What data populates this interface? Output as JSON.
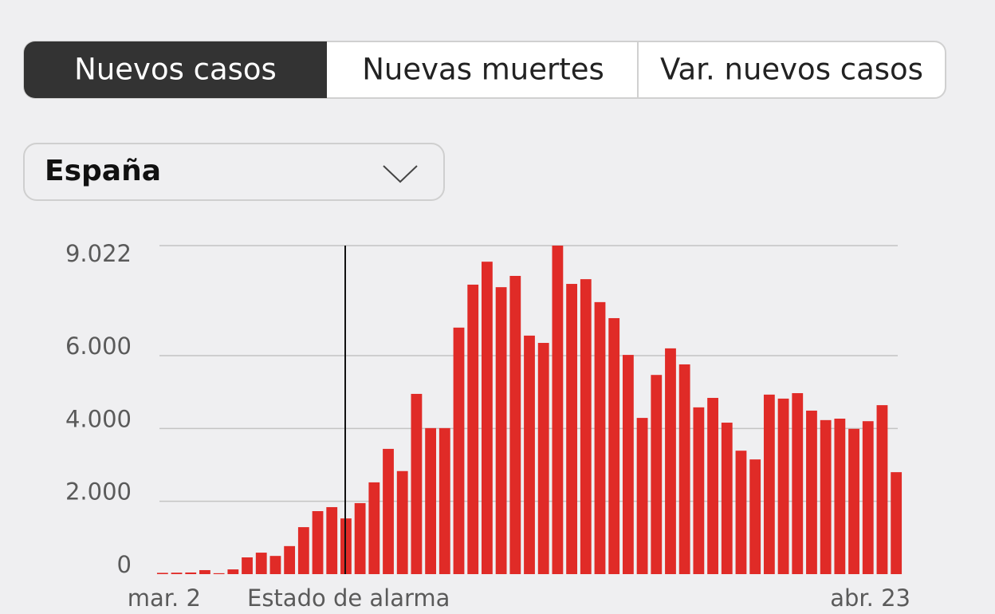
{
  "tabs": [
    "Nuevos casos",
    "Nuevas muertes",
    "Var. nuevos casos"
  ],
  "selector": {
    "label": "España"
  },
  "chart_data": {
    "type": "bar",
    "annotation": "Estado de alarma",
    "categories": [
      "mar. 2",
      null,
      null,
      null,
      null,
      null,
      null,
      null,
      null,
      null,
      null,
      null,
      null,
      null,
      null,
      null,
      null,
      null,
      null,
      null,
      null,
      null,
      null,
      null,
      null,
      null,
      null,
      null,
      null,
      null,
      null,
      null,
      null,
      null,
      null,
      null,
      null,
      null,
      null,
      null,
      null,
      null,
      null,
      null,
      null,
      null,
      null,
      null,
      null,
      null,
      null,
      null,
      "abr. 23"
    ],
    "values": [
      35,
      40,
      45,
      110,
      25,
      130,
      460,
      590,
      500,
      770,
      1290,
      1730,
      1840,
      1530,
      1950,
      2520,
      3440,
      2830,
      4950,
      4010,
      4010,
      6770,
      7950,
      8580,
      7880,
      8190,
      6550,
      6350,
      9022,
      7970,
      8100,
      7470,
      7030,
      6020,
      4290,
      5470,
      6200,
      5760,
      4580,
      4840,
      4160,
      3390,
      3150,
      4930,
      4820,
      4970,
      4490,
      4230,
      4270,
      3990,
      4200,
      4640,
      2800
    ],
    "color": "#e02b27",
    "ylim": [
      0,
      9022
    ],
    "yticks": [
      0,
      {
        "value": 2000,
        "label": "2.000"
      },
      {
        "value": 4000,
        "label": "4.000"
      },
      {
        "value": 6000,
        "label": "6.000"
      },
      {
        "value": 9022,
        "label": "9.022"
      }
    ],
    "grid": true
  }
}
